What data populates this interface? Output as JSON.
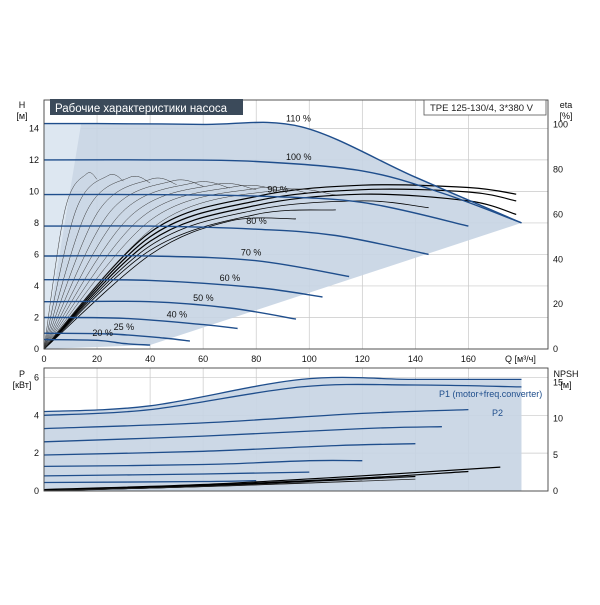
{
  "title_badge": "Рабочие характеристики насоса",
  "model_box": "TPE 125-130/4, 3*380 V",
  "colors": {
    "curve": "#1f4e8c",
    "fill": "#c7d4e3",
    "fill_light": "#dde7f1",
    "grid": "#c8c8c8",
    "eff": "#000000",
    "badge_bg": "#3b4a5a"
  },
  "chart_data": [
    {
      "type": "line",
      "title": "Рабочие характеристики насоса",
      "xlabel": "Q [м³/ч]",
      "ylabel": "H\n[м]",
      "y2label": "eta\n[%]",
      "xlim": [
        0,
        190
      ],
      "ylim": [
        0,
        15.8
      ],
      "x_ticks": [
        0,
        20,
        40,
        60,
        80,
        100,
        120,
        140,
        160
      ],
      "y_ticks": [
        0,
        2,
        4,
        6,
        8,
        10,
        12,
        14
      ],
      "y2lim": [
        0,
        111
      ],
      "y2_ticks": [
        0,
        20,
        40,
        60,
        80,
        100
      ],
      "grid": true,
      "series": [
        {
          "name": "110 %",
          "x": [
            0,
            20,
            60,
            97,
            140,
            180
          ],
          "y": [
            14.3,
            14.3,
            14.25,
            14.1,
            10.9,
            8.0
          ]
        },
        {
          "name": "100 %",
          "x": [
            0,
            40,
            80,
            120,
            150,
            180
          ],
          "y": [
            12.0,
            12.0,
            11.9,
            11.3,
            9.9,
            8.0
          ]
        },
        {
          "name": "90 %",
          "x": [
            0,
            40,
            80,
            120,
            160
          ],
          "y": [
            9.8,
            9.8,
            9.7,
            9.3,
            7.8
          ]
        },
        {
          "name": "80 %",
          "x": [
            0,
            40,
            80,
            110,
            145
          ],
          "y": [
            7.8,
            7.8,
            7.6,
            7.2,
            6.0
          ]
        },
        {
          "name": "70 %",
          "x": [
            0,
            40,
            80,
            115
          ],
          "y": [
            5.9,
            5.9,
            5.6,
            4.6
          ]
        },
        {
          "name": "60 %",
          "x": [
            0,
            40,
            80,
            105
          ],
          "y": [
            4.4,
            4.35,
            3.9,
            3.3
          ]
        },
        {
          "name": "50 %",
          "x": [
            0,
            40,
            70,
            95
          ],
          "y": [
            3.0,
            3.0,
            2.6,
            1.9
          ]
        },
        {
          "name": "40 %",
          "x": [
            0,
            30,
            60,
            73
          ],
          "y": [
            2.0,
            1.95,
            1.55,
            1.3
          ]
        },
        {
          "name": "25 %",
          "x": [
            0,
            25,
            45,
            55
          ],
          "y": [
            1.0,
            0.95,
            0.7,
            0.5
          ]
        },
        {
          "name": "20 %",
          "x": [
            0,
            20,
            30,
            40
          ],
          "y": [
            0.6,
            0.55,
            0.35,
            0.25
          ]
        }
      ],
      "efficiency_series": [
        {
          "x": [
            0,
            40,
            80,
            120,
            160,
            178
          ],
          "y": [
            0,
            52,
            68,
            73,
            72,
            69
          ]
        },
        {
          "x": [
            0,
            40,
            80,
            120,
            160,
            178
          ],
          "y": [
            0,
            50,
            66,
            71,
            70,
            66
          ]
        },
        {
          "x": [
            0,
            40,
            80,
            120,
            160,
            178
          ],
          "y": [
            0,
            48,
            64,
            69,
            66,
            60
          ]
        },
        {
          "x": [
            0,
            40,
            80,
            120,
            145
          ],
          "y": [
            0,
            46,
            62,
            66,
            63
          ]
        },
        {
          "x": [
            0,
            40,
            80,
            110
          ],
          "y": [
            0,
            44,
            60,
            62
          ]
        },
        {
          "x": [
            0,
            40,
            70,
            95
          ],
          "y": [
            0,
            42,
            57,
            58
          ]
        }
      ]
    },
    {
      "type": "line",
      "ylabel": "P\n[кВт]",
      "y2label": "NPSH\n[м]",
      "xlim": [
        0,
        190
      ],
      "ylim": [
        0,
        6.5
      ],
      "y_ticks": [
        0,
        2,
        4,
        6
      ],
      "y2lim": [
        0,
        17
      ],
      "y2_ticks": [
        0,
        5,
        10,
        15
      ],
      "grid": true,
      "series": [
        {
          "name": "P1 (motor+freq.converter)",
          "x": [
            0,
            40,
            97,
            140,
            180
          ],
          "y": [
            4.2,
            4.5,
            5.9,
            5.9,
            5.9
          ]
        },
        {
          "name": "P2",
          "x": [
            0,
            40,
            97,
            140,
            180
          ],
          "y": [
            4.0,
            4.3,
            5.5,
            5.6,
            5.5
          ]
        },
        {
          "x": [
            0,
            60,
            120,
            160
          ],
          "y": [
            3.3,
            3.6,
            4.1,
            4.3
          ]
        },
        {
          "x": [
            0,
            60,
            120,
            150
          ],
          "y": [
            2.6,
            2.9,
            3.3,
            3.4
          ]
        },
        {
          "x": [
            0,
            60,
            110,
            140
          ],
          "y": [
            1.9,
            2.1,
            2.4,
            2.5
          ]
        },
        {
          "x": [
            0,
            60,
            100,
            120
          ],
          "y": [
            1.3,
            1.4,
            1.6,
            1.6
          ]
        },
        {
          "x": [
            0,
            60,
            100
          ],
          "y": [
            0.8,
            0.9,
            1.0
          ]
        },
        {
          "x": [
            0,
            60,
            80
          ],
          "y": [
            0.45,
            0.5,
            0.55
          ]
        }
      ],
      "npsh_series": [
        {
          "x": [
            0,
            60,
            120,
            172
          ],
          "y": [
            0.2,
            0.9,
            2.1,
            3.3
          ]
        },
        {
          "x": [
            0,
            60,
            120,
            160
          ],
          "y": [
            0.15,
            0.8,
            1.8,
            2.7
          ]
        },
        {
          "x": [
            0,
            60,
            110,
            140
          ],
          "y": [
            0.1,
            0.7,
            1.5,
            2.0
          ]
        }
      ]
    }
  ]
}
